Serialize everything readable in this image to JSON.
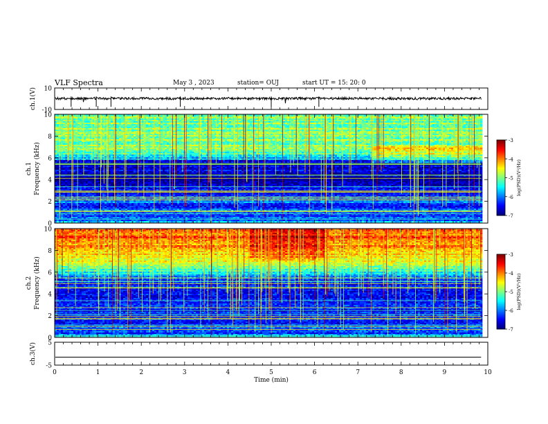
{
  "header": {
    "title": "VLF Spectra",
    "date": "May 3  , 2023",
    "station": "station= OUJ",
    "start": "start  UT  =   15: 20: 0"
  },
  "chart_data": [
    {
      "type": "line",
      "panel": "waveform-ch1",
      "ylabel": "ch.1(V)",
      "ylim": [
        -10,
        10
      ],
      "yticks": [
        "10",
        "-10"
      ],
      "baseline_value": 0.2
    },
    {
      "type": "heatmap",
      "panel": "spectrogram-ch1",
      "ylabel": "ch.1\nFrequency (kHz)",
      "ylabel_ch": "ch.1",
      "ylabel_freq": "Frequency (kHz)",
      "ylim": [
        0,
        10
      ],
      "yticks": [
        "0",
        "2",
        "4",
        "6",
        "8",
        "10"
      ],
      "colorbar": {
        "label": "log(PSD)(V²/Hz)",
        "range": [
          -7,
          -3
        ],
        "ticks": [
          "-3",
          "-4",
          "-5",
          "-6",
          "-7"
        ],
        "colormap": "jet"
      },
      "profile_log_psd": [
        {
          "f": 0.0,
          "v": -5.8
        },
        {
          "f": 0.5,
          "v": -6.3
        },
        {
          "f": 1.0,
          "v": -6.0
        },
        {
          "f": 1.5,
          "v": -6.4
        },
        {
          "f": 2.0,
          "v": -5.9
        },
        {
          "f": 2.5,
          "v": -6.5
        },
        {
          "f": 3.0,
          "v": -6.3
        },
        {
          "f": 3.5,
          "v": -6.6
        },
        {
          "f": 4.0,
          "v": -6.9
        },
        {
          "f": 4.5,
          "v": -6.7
        },
        {
          "f": 5.0,
          "v": -6.6
        },
        {
          "f": 5.5,
          "v": -6.9
        },
        {
          "f": 6.0,
          "v": -5.6
        },
        {
          "f": 6.5,
          "v": -5.2
        },
        {
          "f": 7.0,
          "v": -5.0
        },
        {
          "f": 8.0,
          "v": -5.0
        },
        {
          "f": 9.0,
          "v": -5.0
        },
        {
          "f": 10.0,
          "v": -5.1
        }
      ]
    },
    {
      "type": "heatmap",
      "panel": "spectrogram-ch2",
      "ylabel": "ch.2\nFrequency (kHz)",
      "ylabel_ch": "ch.2",
      "ylabel_freq": "Frequency (kHz)",
      "ylim": [
        0,
        10
      ],
      "yticks": [
        "0",
        "2",
        "4",
        "6",
        "8",
        "10"
      ],
      "colorbar": {
        "label": "log(PSD)(V²/Hz)",
        "range": [
          -7,
          -3
        ],
        "ticks": [
          "-3",
          "-4",
          "-5",
          "-6",
          "-7"
        ],
        "colormap": "jet"
      },
      "profile_log_psd": [
        {
          "f": 0.0,
          "v": -5.8
        },
        {
          "f": 0.5,
          "v": -6.4
        },
        {
          "f": 1.0,
          "v": -6.1
        },
        {
          "f": 1.5,
          "v": -6.5
        },
        {
          "f": 2.0,
          "v": -6.2
        },
        {
          "f": 2.5,
          "v": -6.5
        },
        {
          "f": 3.0,
          "v": -6.4
        },
        {
          "f": 3.5,
          "v": -6.5
        },
        {
          "f": 4.0,
          "v": -6.6
        },
        {
          "f": 4.5,
          "v": -6.4
        },
        {
          "f": 5.0,
          "v": -6.3
        },
        {
          "f": 5.5,
          "v": -6.1
        },
        {
          "f": 6.0,
          "v": -5.4
        },
        {
          "f": 6.5,
          "v": -5.0
        },
        {
          "f": 7.0,
          "v": -4.6
        },
        {
          "f": 8.0,
          "v": -4.1
        },
        {
          "f": 9.0,
          "v": -3.9
        },
        {
          "f": 10.0,
          "v": -4.0
        }
      ]
    },
    {
      "type": "line",
      "panel": "waveform-ch3",
      "ylabel": "ch.3(V)",
      "ylim": [
        -5,
        5
      ],
      "yticks": [
        "5",
        "-5"
      ],
      "baseline_value": -1.5
    }
  ],
  "xaxis": {
    "label": "Time  (min)",
    "range": [
      0,
      10
    ],
    "data_end": 9.85,
    "ticks": [
      "0",
      "1",
      "2",
      "3",
      "4",
      "5",
      "6",
      "7",
      "8",
      "9",
      "10"
    ]
  }
}
